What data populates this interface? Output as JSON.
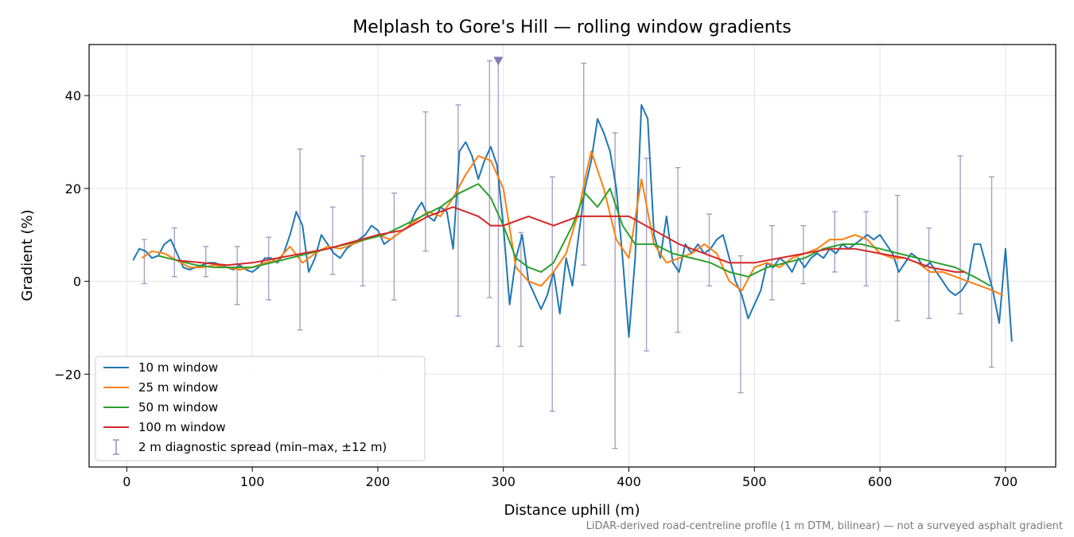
{
  "chart_data": {
    "type": "line",
    "title": "Melplash to Gore's Hill — rolling window gradients",
    "xlabel": "Distance uphill (m)",
    "ylabel": "Gradient (%)",
    "xlim": [
      -30,
      740
    ],
    "ylim": [
      -40,
      51
    ],
    "xticks": [
      0,
      100,
      200,
      300,
      400,
      500,
      600,
      700
    ],
    "yticks": [
      -20,
      0,
      20,
      40
    ],
    "ytick_labels": [
      "−20",
      "0",
      "20",
      "40"
    ],
    "grid": true,
    "legend_position": "lower-left",
    "caption": "LiDAR-derived road-centreline profile (1 m DTM, bilinear) — not a surveyed asphalt gradient",
    "marker": {
      "x": 296,
      "y": 47.5,
      "shape": "down-triangle",
      "color": "#8c7bb0"
    },
    "series": [
      {
        "name": "10 m window",
        "color": "#1f77b4",
        "x": [
          5,
          10,
          15,
          20,
          25,
          30,
          35,
          40,
          45,
          50,
          55,
          60,
          65,
          70,
          75,
          80,
          85,
          90,
          95,
          100,
          105,
          110,
          115,
          120,
          125,
          130,
          135,
          140,
          145,
          150,
          155,
          160,
          165,
          170,
          175,
          180,
          185,
          190,
          195,
          200,
          205,
          210,
          215,
          220,
          225,
          230,
          235,
          240,
          245,
          250,
          255,
          260,
          265,
          270,
          275,
          280,
          285,
          290,
          295,
          300,
          305,
          310,
          315,
          320,
          325,
          330,
          335,
          340,
          345,
          350,
          355,
          360,
          365,
          370,
          375,
          380,
          385,
          390,
          395,
          400,
          405,
          410,
          415,
          420,
          425,
          430,
          435,
          440,
          445,
          450,
          455,
          460,
          465,
          470,
          475,
          480,
          485,
          490,
          495,
          500,
          505,
          510,
          515,
          520,
          525,
          530,
          535,
          540,
          545,
          550,
          555,
          560,
          565,
          570,
          575,
          580,
          585,
          590,
          595,
          600,
          605,
          610,
          615,
          620,
          625,
          630,
          635,
          640,
          645,
          650,
          655,
          660,
          665,
          670,
          675,
          680,
          685,
          690,
          695,
          700,
          705
        ],
        "y": [
          4.5,
          7,
          6.5,
          5,
          5.5,
          8,
          9,
          6,
          3,
          2.5,
          3,
          3.5,
          4,
          4,
          3.5,
          3,
          2.5,
          3.5,
          2.5,
          2,
          3,
          5,
          5,
          4,
          6,
          10,
          15,
          12,
          2,
          5,
          10,
          8,
          6,
          5,
          7,
          8,
          9,
          10,
          12,
          11,
          8,
          9,
          10,
          11,
          12,
          15,
          17,
          14,
          13,
          16,
          15,
          7,
          28,
          30,
          27,
          22,
          26,
          29,
          25,
          12,
          -5,
          5,
          10,
          0,
          -3,
          -6,
          -3,
          2,
          -7,
          5,
          -1,
          10,
          20,
          26,
          35,
          32,
          28,
          20,
          5,
          -12,
          5,
          38,
          35,
          10,
          5,
          14,
          4,
          2,
          8,
          6,
          8,
          6,
          7,
          9,
          10,
          5,
          0,
          -3,
          -8,
          -5,
          -2,
          4,
          3,
          5,
          4,
          2,
          5,
          3,
          5,
          6,
          5,
          7,
          6,
          8,
          7,
          8,
          9,
          10,
          9,
          10,
          8,
          6,
          2,
          4,
          6,
          5,
          3,
          4,
          2,
          0,
          -2,
          -3,
          -2,
          0,
          8,
          8,
          3,
          -2,
          -9,
          7,
          -13
        ]
      },
      {
        "name": "25 m window",
        "color": "#ff7f0e",
        "x": [
          12,
          20,
          30,
          40,
          50,
          60,
          70,
          80,
          90,
          100,
          110,
          120,
          130,
          140,
          150,
          160,
          170,
          180,
          190,
          200,
          210,
          220,
          230,
          240,
          250,
          260,
          270,
          280,
          290,
          300,
          310,
          320,
          330,
          340,
          350,
          360,
          365,
          370,
          380,
          390,
          400,
          410,
          420,
          430,
          440,
          450,
          460,
          470,
          480,
          490,
          500,
          510,
          520,
          530,
          540,
          550,
          560,
          570,
          580,
          590,
          600,
          610,
          620,
          630,
          640,
          650,
          660,
          670,
          680,
          690,
          698
        ],
        "y": [
          5,
          6.5,
          6,
          4.5,
          3,
          3,
          3.5,
          3,
          2.5,
          3,
          4,
          4.5,
          7.5,
          4,
          6,
          7.5,
          7,
          8,
          9,
          10,
          9,
          11,
          13,
          15,
          14,
          18,
          23,
          27,
          26,
          20,
          3,
          0,
          -1,
          2,
          6,
          15,
          22,
          28,
          20,
          9,
          5,
          22,
          8,
          4,
          5,
          6,
          8,
          6,
          0,
          -2,
          3,
          4,
          3,
          5,
          6,
          7,
          9,
          9,
          10,
          9,
          6,
          5,
          5,
          4,
          2,
          2,
          1,
          0,
          -1,
          -2,
          -3
        ]
      },
      {
        "name": "50 m window",
        "color": "#2ca02c",
        "x": [
          25,
          40,
          55,
          70,
          85,
          100,
          115,
          130,
          145,
          160,
          175,
          190,
          205,
          220,
          235,
          250,
          265,
          280,
          290,
          300,
          310,
          320,
          330,
          340,
          355,
          365,
          375,
          385,
          395,
          405,
          420,
          435,
          450,
          465,
          480,
          495,
          510,
          525,
          540,
          555,
          570,
          585,
          600,
          615,
          630,
          645,
          660,
          675,
          688
        ],
        "y": [
          5.5,
          4.5,
          3.5,
          3,
          3,
          3,
          4,
          5,
          6,
          7,
          8,
          9,
          10,
          12,
          14,
          16,
          19,
          21,
          18,
          12,
          5,
          3,
          2,
          4,
          12,
          19,
          16,
          20,
          12,
          8,
          8,
          6,
          5,
          4,
          2,
          1,
          3,
          4,
          5,
          7,
          8,
          8,
          7,
          6,
          5,
          4,
          3,
          1,
          -1
        ]
      },
      {
        "name": "100 m window",
        "color": "#d62728",
        "x": [
          40,
          60,
          80,
          100,
          120,
          140,
          160,
          180,
          200,
          220,
          240,
          260,
          280,
          290,
          300,
          320,
          340,
          360,
          380,
          400,
          420,
          440,
          460,
          480,
          500,
          520,
          540,
          560,
          580,
          600,
          620,
          640,
          660,
          668
        ],
        "y": [
          4.5,
          4,
          3.5,
          4,
          5,
          6,
          7,
          8.5,
          10,
          11,
          14,
          16,
          14,
          12,
          12,
          14,
          12,
          14,
          14,
          14,
          11,
          8,
          6,
          4,
          4,
          5,
          6,
          7,
          7,
          6,
          5,
          3,
          2,
          2
        ]
      }
    ],
    "spread": {
      "name": "2 m diagnostic spread (min–max, ±12 m)",
      "color": "#9890bb",
      "x": [
        14,
        38,
        63,
        88,
        113,
        138,
        164,
        188,
        213,
        238,
        264,
        289,
        296,
        314,
        339,
        364,
        389,
        414,
        439,
        464,
        489,
        514,
        539,
        564,
        589,
        614,
        639,
        664,
        689
      ],
      "low": [
        -0.5,
        1,
        1,
        -5,
        -4,
        -10.5,
        1.5,
        -1,
        -4,
        6.5,
        -7.5,
        -3.5,
        -14,
        -14,
        -28,
        3.5,
        -36,
        -15,
        -11,
        -1,
        -24,
        -4,
        -0.5,
        2,
        -1,
        -8.5,
        -8,
        -7,
        -18.5
      ],
      "high": [
        9,
        11.5,
        7.5,
        7.5,
        9.5,
        28.5,
        16,
        27,
        19,
        36.5,
        38,
        47.5,
        47.5,
        10.5,
        22.5,
        47,
        32,
        26.5,
        24.5,
        14.5,
        5.5,
        12,
        12,
        15,
        15,
        18.5,
        11.5,
        27,
        22.5
      ]
    }
  }
}
